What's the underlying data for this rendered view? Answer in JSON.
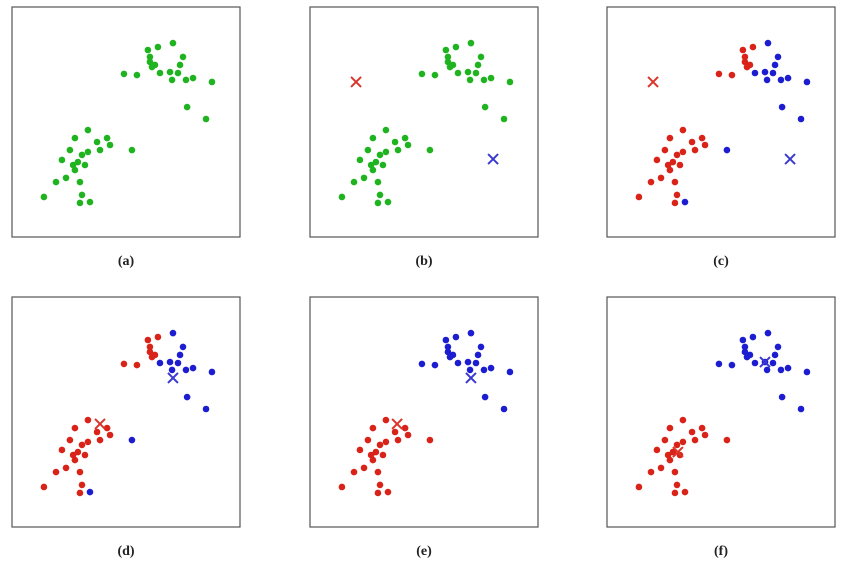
{
  "chart_data": [
    {
      "type": "scatter",
      "title": "(a)",
      "xlim": [
        0,
        100
      ],
      "ylim": [
        0,
        100
      ],
      "series": [
        {
          "color": "#1fb41f",
          "marker": "dot",
          "x": [
            59.6,
            64.0,
            70.6,
            75.0,
            60.5,
            61.4,
            62.7,
            49.1,
            54.8,
            64.9,
            69.3,
            72.8,
            70.2,
            76.3,
            79.4,
            87.7,
            73.7,
            76.8,
            85.1,
            60.5,
            33.3,
            27.6,
            37.3,
            41.7,
            43.0,
            38.6,
            33.3,
            30.7,
            25.4,
            21.9,
            28.9,
            52.6,
            27.6,
            23.7,
            19.3,
            14.0,
            29.8,
            30.7,
            34.2,
            29.8,
            26.8,
            32.0
          ],
          "y": [
            81.3,
            82.6,
            84.3,
            78.3,
            76.1,
            73.9,
            74.8,
            70.9,
            70.4,
            71.3,
            71.7,
            71.3,
            68.3,
            68.3,
            69.1,
            67.4,
            74.8,
            56.5,
            51.3,
            78.3,
            46.5,
            43.0,
            41.3,
            43.0,
            40.0,
            37.8,
            37.0,
            35.7,
            37.8,
            33.5,
            32.6,
            37.8,
            29.1,
            25.7,
            23.9,
            17.4,
            23.9,
            18.3,
            15.2,
            14.8,
            31.3,
            31.3
          ]
        }
      ]
    },
    {
      "type": "scatter",
      "title": "(b)",
      "xlim": [
        0,
        100
      ],
      "ylim": [
        0,
        100
      ],
      "series": [
        {
          "color": "#1fb41f",
          "marker": "dot",
          "x": [
            59.6,
            64.0,
            70.6,
            75.0,
            60.5,
            61.4,
            62.7,
            49.1,
            54.8,
            64.9,
            69.3,
            72.8,
            70.2,
            76.3,
            79.4,
            87.7,
            73.7,
            76.8,
            85.1,
            60.5,
            33.3,
            27.6,
            37.3,
            41.7,
            43.0,
            38.6,
            33.3,
            30.7,
            25.4,
            21.9,
            28.9,
            52.6,
            27.6,
            23.7,
            19.3,
            14.0,
            29.8,
            30.7,
            34.2,
            29.8,
            26.8,
            32.0
          ],
          "y": [
            81.3,
            82.6,
            84.3,
            78.3,
            76.1,
            73.9,
            74.8,
            70.9,
            70.4,
            71.3,
            71.7,
            71.3,
            68.3,
            68.3,
            69.1,
            67.4,
            74.8,
            56.5,
            51.3,
            78.3,
            46.5,
            43.0,
            41.3,
            43.0,
            40.0,
            37.8,
            37.0,
            35.7,
            37.8,
            33.5,
            32.6,
            37.8,
            29.1,
            25.7,
            23.9,
            17.4,
            23.9,
            18.3,
            15.2,
            14.8,
            31.3,
            31.3
          ]
        },
        {
          "color": "#d9352a",
          "marker": "x",
          "x": [
            20.2
          ],
          "y": [
            67.4
          ]
        },
        {
          "color": "#3a3ad0",
          "marker": "x",
          "x": [
            80.3
          ],
          "y": [
            33.9
          ]
        }
      ]
    },
    {
      "type": "scatter",
      "title": "(c)",
      "xlim": [
        0,
        100
      ],
      "ylim": [
        0,
        100
      ],
      "series": [
        {
          "color": "#d92318",
          "marker": "dot",
          "x": [
            59.6,
            64.0,
            60.5,
            61.4,
            62.7,
            49.1,
            54.8,
            60.5,
            33.3,
            27.6,
            37.3,
            41.7,
            43.0,
            38.6,
            33.3,
            30.7,
            25.4,
            21.9,
            28.9,
            27.6,
            23.7,
            19.3,
            14.0,
            29.8,
            30.7,
            29.8,
            26.8,
            32.0
          ],
          "y": [
            81.3,
            82.6,
            76.1,
            73.9,
            74.8,
            70.9,
            70.4,
            78.3,
            46.5,
            43.0,
            41.3,
            43.0,
            40.0,
            37.8,
            37.0,
            35.7,
            37.8,
            33.5,
            32.6,
            29.1,
            25.7,
            23.9,
            17.4,
            23.9,
            18.3,
            14.8,
            31.3,
            31.3
          ]
        },
        {
          "color": "#1c1cd0",
          "marker": "dot",
          "x": [
            70.6,
            75.0,
            64.9,
            69.3,
            72.8,
            70.2,
            76.3,
            79.4,
            87.7,
            73.7,
            76.8,
            85.1,
            52.6,
            34.2
          ],
          "y": [
            84.3,
            78.3,
            71.3,
            71.7,
            71.3,
            68.3,
            68.3,
            69.1,
            67.4,
            74.8,
            56.5,
            51.3,
            37.8,
            15.2
          ]
        },
        {
          "color": "#d9352a",
          "marker": "x",
          "x": [
            20.2
          ],
          "y": [
            67.4
          ]
        },
        {
          "color": "#3a3ad0",
          "marker": "x",
          "x": [
            80.3
          ],
          "y": [
            33.9
          ]
        }
      ]
    },
    {
      "type": "scatter",
      "title": "(d)",
      "xlim": [
        0,
        100
      ],
      "ylim": [
        0,
        100
      ],
      "series": [
        {
          "color": "#d92318",
          "marker": "dot",
          "x": [
            59.6,
            64.0,
            60.5,
            61.4,
            62.7,
            49.1,
            54.8,
            60.5,
            33.3,
            27.6,
            37.3,
            41.7,
            43.0,
            38.6,
            33.3,
            30.7,
            25.4,
            21.9,
            28.9,
            27.6,
            23.7,
            19.3,
            14.0,
            29.8,
            30.7,
            29.8,
            26.8,
            32.0
          ],
          "y": [
            81.3,
            82.6,
            76.1,
            73.9,
            74.8,
            70.9,
            70.4,
            78.3,
            46.5,
            43.0,
            41.3,
            43.0,
            40.0,
            37.8,
            37.0,
            35.7,
            37.8,
            33.5,
            32.6,
            29.1,
            25.7,
            23.9,
            17.4,
            23.9,
            18.3,
            14.8,
            31.3,
            31.3
          ]
        },
        {
          "color": "#1c1cd0",
          "marker": "dot",
          "x": [
            70.6,
            75.0,
            64.9,
            69.3,
            72.8,
            70.2,
            76.3,
            79.4,
            87.7,
            73.7,
            76.8,
            85.1,
            52.6,
            34.2
          ],
          "y": [
            84.3,
            78.3,
            71.3,
            71.7,
            71.3,
            68.3,
            68.3,
            69.1,
            67.4,
            74.8,
            56.5,
            51.3,
            37.8,
            15.2
          ]
        },
        {
          "color": "#d9352a",
          "marker": "x",
          "x": [
            38.6
          ],
          "y": [
            44.8
          ]
        },
        {
          "color": "#3a3ad0",
          "marker": "x",
          "x": [
            70.6
          ],
          "y": [
            64.8
          ]
        }
      ]
    },
    {
      "type": "scatter",
      "title": "(e)",
      "xlim": [
        0,
        100
      ],
      "ylim": [
        0,
        100
      ],
      "series": [
        {
          "color": "#d92318",
          "marker": "dot",
          "x": [
            33.3,
            27.6,
            37.3,
            41.7,
            43.0,
            38.6,
            33.3,
            30.7,
            25.4,
            21.9,
            28.9,
            52.6,
            27.6,
            23.7,
            19.3,
            14.0,
            29.8,
            30.7,
            34.2,
            29.8,
            26.8,
            32.0
          ],
          "y": [
            46.5,
            43.0,
            41.3,
            43.0,
            40.0,
            37.8,
            37.0,
            35.7,
            37.8,
            33.5,
            32.6,
            37.8,
            29.1,
            25.7,
            23.9,
            17.4,
            23.9,
            18.3,
            15.2,
            14.8,
            31.3,
            31.3
          ]
        },
        {
          "color": "#1c1cd0",
          "marker": "dot",
          "x": [
            59.6,
            64.0,
            70.6,
            75.0,
            60.5,
            61.4,
            62.7,
            49.1,
            54.8,
            64.9,
            69.3,
            72.8,
            70.2,
            76.3,
            79.4,
            87.7,
            73.7,
            76.8,
            85.1,
            60.5
          ],
          "y": [
            81.3,
            82.6,
            84.3,
            78.3,
            76.1,
            73.9,
            74.8,
            70.9,
            70.4,
            71.3,
            71.7,
            71.3,
            68.3,
            68.3,
            69.1,
            67.4,
            74.8,
            56.5,
            51.3,
            78.3
          ]
        },
        {
          "color": "#d9352a",
          "marker": "x",
          "x": [
            38.2
          ],
          "y": [
            44.8
          ]
        },
        {
          "color": "#3a3ad0",
          "marker": "x",
          "x": [
            70.6
          ],
          "y": [
            64.8
          ]
        }
      ]
    },
    {
      "type": "scatter",
      "title": "(f)",
      "xlim": [
        0,
        100
      ],
      "ylim": [
        0,
        100
      ],
      "series": [
        {
          "color": "#d92318",
          "marker": "dot",
          "x": [
            33.3,
            27.6,
            37.3,
            41.7,
            43.0,
            38.6,
            33.3,
            30.7,
            25.4,
            21.9,
            28.9,
            52.6,
            27.6,
            23.7,
            19.3,
            14.0,
            29.8,
            30.7,
            34.2,
            29.8,
            26.8,
            32.0
          ],
          "y": [
            46.5,
            43.0,
            41.3,
            43.0,
            40.0,
            37.8,
            37.0,
            35.7,
            37.8,
            33.5,
            32.6,
            37.8,
            29.1,
            25.7,
            23.9,
            17.4,
            23.9,
            18.3,
            15.2,
            14.8,
            31.3,
            31.3
          ]
        },
        {
          "color": "#1c1cd0",
          "marker": "dot",
          "x": [
            59.6,
            64.0,
            70.6,
            75.0,
            60.5,
            61.4,
            62.7,
            49.1,
            54.8,
            64.9,
            69.3,
            72.8,
            70.2,
            76.3,
            79.4,
            87.7,
            73.7,
            76.8,
            85.1,
            60.5
          ],
          "y": [
            81.3,
            82.6,
            84.3,
            78.3,
            76.1,
            73.9,
            74.8,
            70.9,
            70.4,
            71.3,
            71.7,
            71.3,
            68.3,
            68.3,
            69.1,
            67.4,
            74.8,
            56.5,
            51.3,
            78.3
          ]
        },
        {
          "color": "#d9352a",
          "marker": "x",
          "x": [
            31.1
          ],
          "y": [
            32.6
          ]
        },
        {
          "color": "#3a3ad0",
          "marker": "x",
          "x": [
            69.3
          ],
          "y": [
            71.7
          ]
        }
      ]
    }
  ]
}
